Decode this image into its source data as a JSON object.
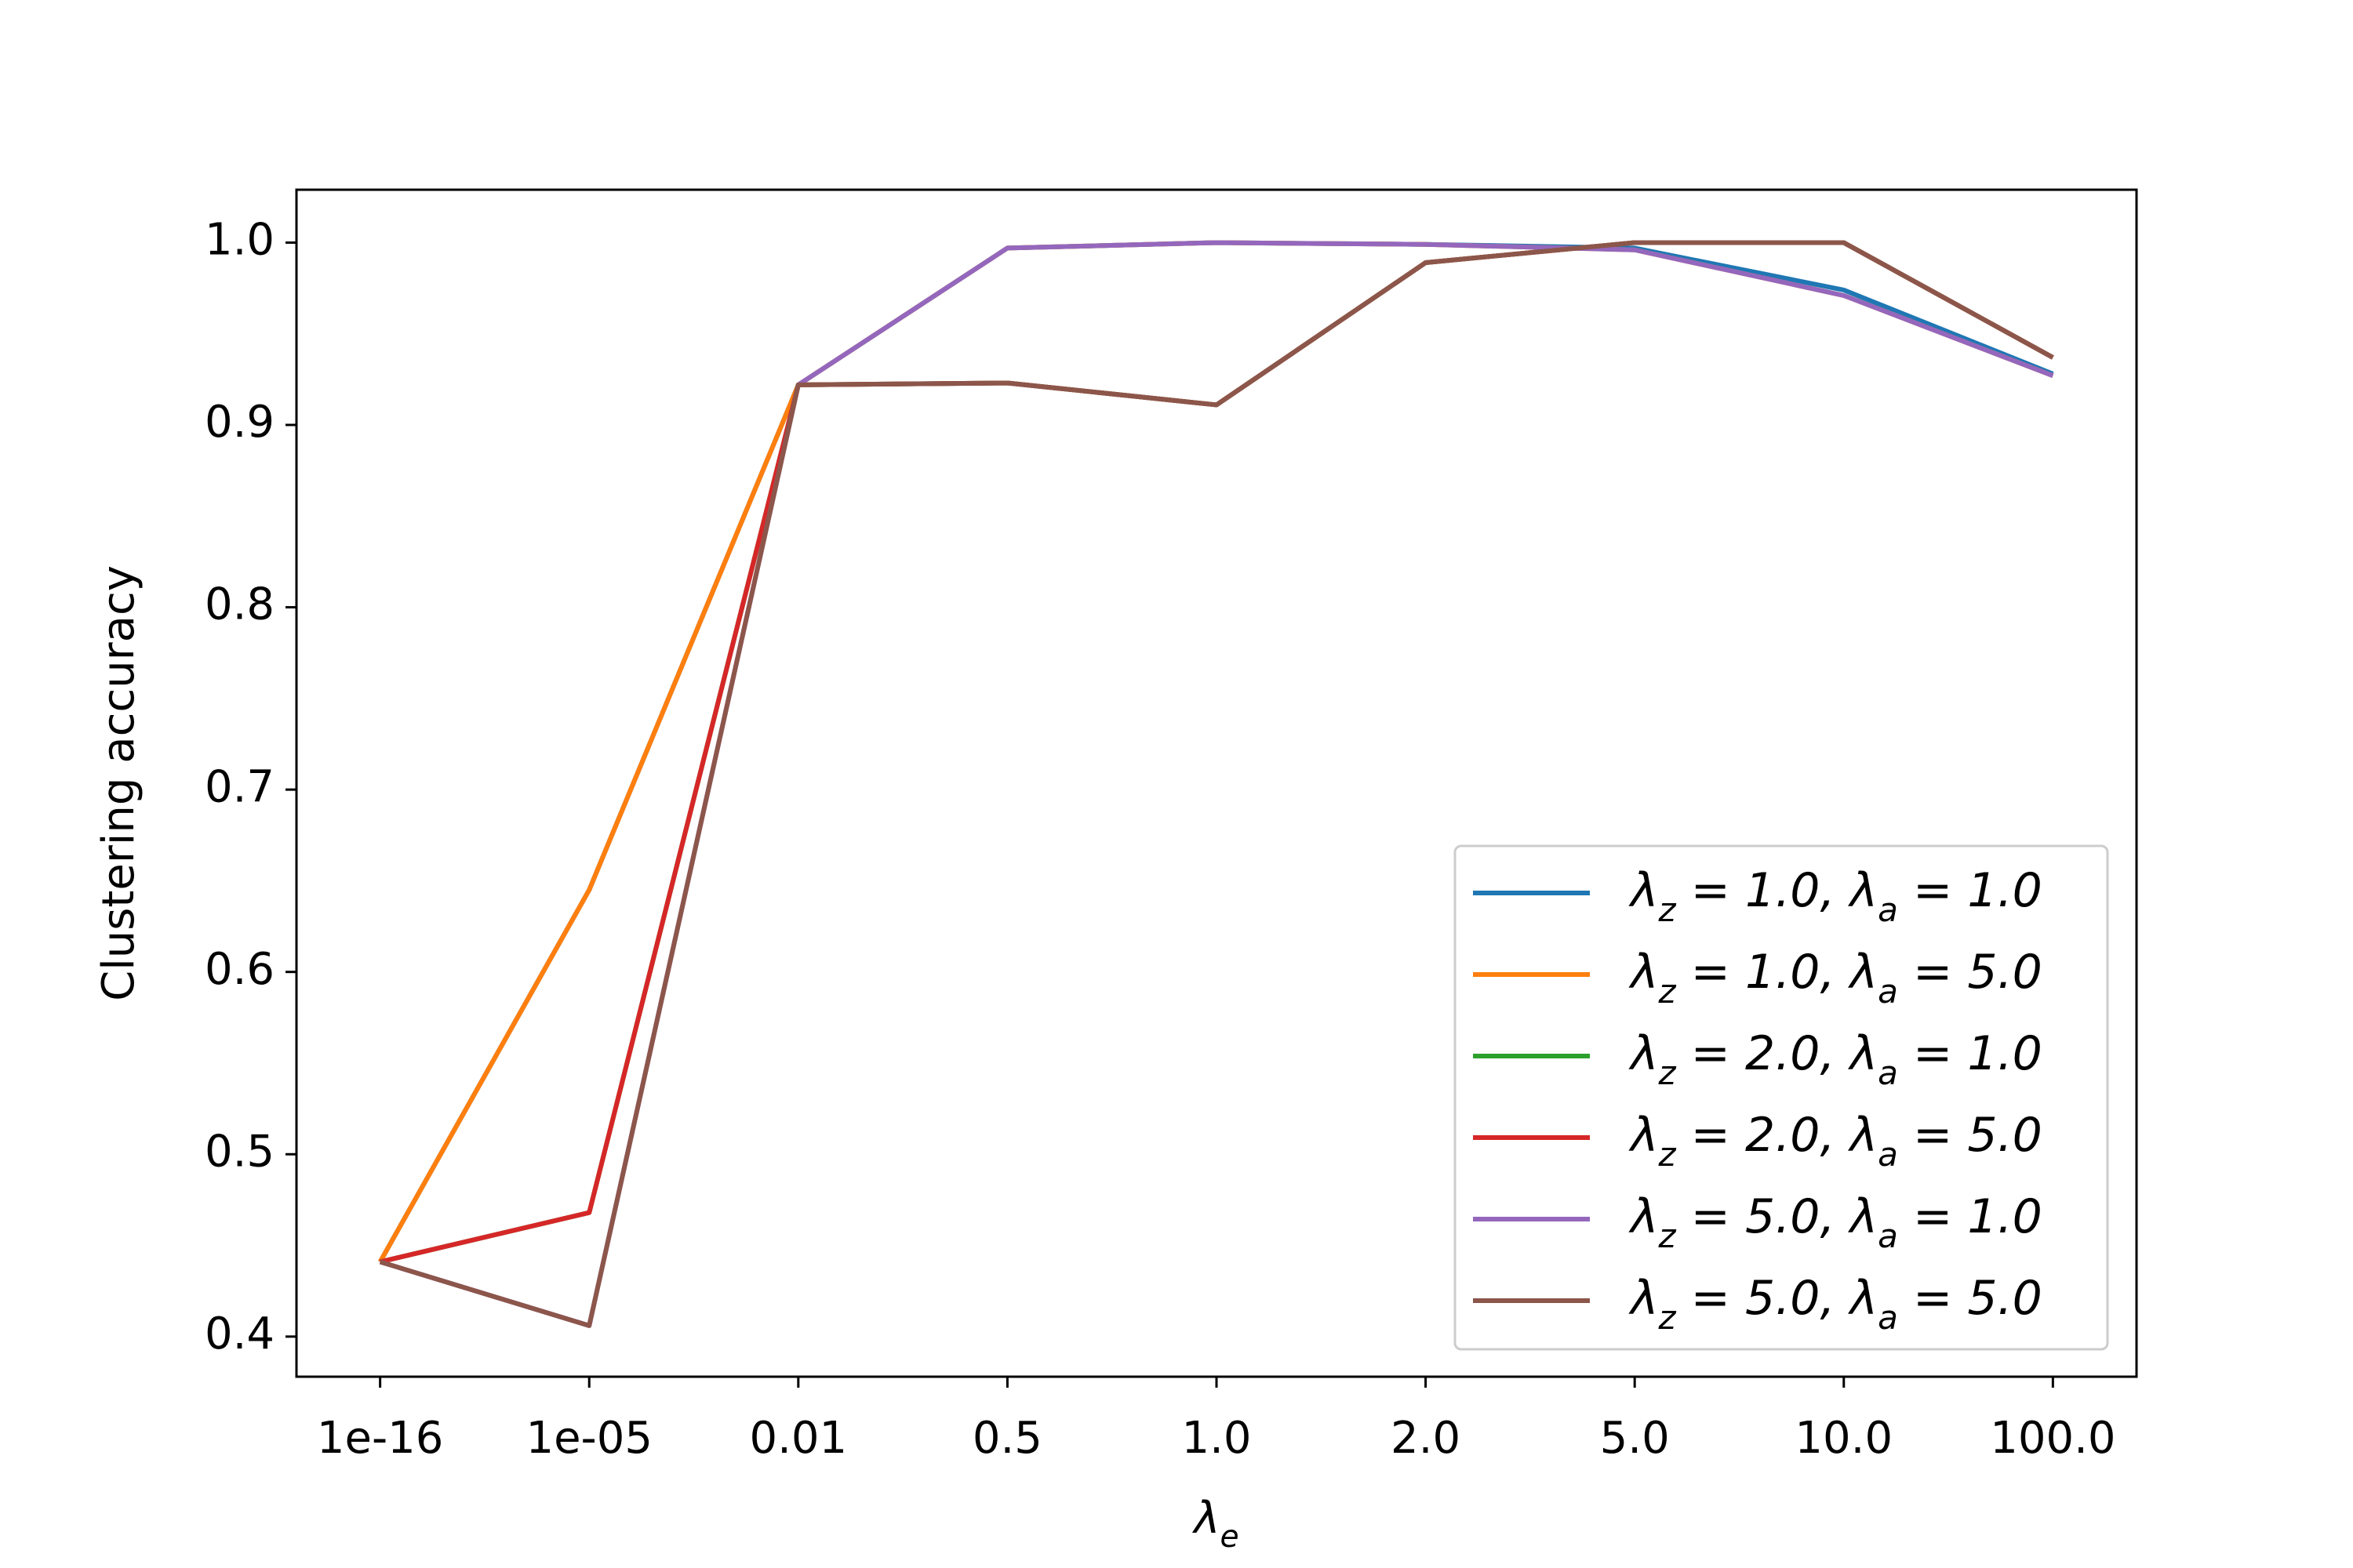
{
  "chart_data": {
    "type": "line",
    "x_label": "λe",
    "y_label": "Clustering accuracy",
    "categories": [
      "1e-16",
      "1e-05",
      "0.01",
      "0.5",
      "1.0",
      "2.0",
      "5.0",
      "10.0",
      "100.0"
    ],
    "ylim": [
      0.378,
      1.029
    ],
    "yticks": [
      {
        "value": 0.4,
        "label": "0.4"
      },
      {
        "value": 0.5,
        "label": "0.5"
      },
      {
        "value": 0.6,
        "label": "0.6"
      },
      {
        "value": 0.7,
        "label": "0.7"
      },
      {
        "value": 0.8,
        "label": "0.8"
      },
      {
        "value": 0.9,
        "label": "0.9"
      },
      {
        "value": 1.0,
        "label": "1.0"
      }
    ],
    "legend": "lower right",
    "series": [
      {
        "name": "λz = 1.0, λa = 1.0",
        "color": "#1f77b4",
        "values": [
          0.441,
          0.645,
          0.922,
          0.997,
          1.0,
          0.999,
          0.997,
          0.974,
          0.928
        ]
      },
      {
        "name": "λz = 1.0, λa = 5.0",
        "color": "#ff7f0e",
        "values": [
          0.441,
          0.645,
          0.922,
          0.997,
          1.0,
          0.999,
          0.996,
          0.971,
          0.927
        ]
      },
      {
        "name": "λz = 2.0, λa = 1.0",
        "color": "#2ca02c",
        "values": [
          0.441,
          0.468,
          0.922,
          0.923,
          0.911,
          0.989,
          1.0,
          1.0,
          0.937
        ]
      },
      {
        "name": "λz = 2.0, λa = 5.0",
        "color": "#d62728",
        "values": [
          0.441,
          0.468,
          0.922,
          0.923,
          0.911,
          0.989,
          1.0,
          1.0,
          0.937
        ]
      },
      {
        "name": "λz = 5.0, λa = 1.0",
        "color": "#9467bd",
        "values": [
          0.441,
          0.406,
          0.922,
          0.997,
          1.0,
          0.999,
          0.996,
          0.971,
          0.927
        ]
      },
      {
        "name": "λz = 5.0, λa = 5.0",
        "color": "#8c564b",
        "values": [
          0.441,
          0.406,
          0.922,
          0.923,
          0.911,
          0.989,
          1.0,
          1.0,
          0.937
        ]
      }
    ]
  }
}
